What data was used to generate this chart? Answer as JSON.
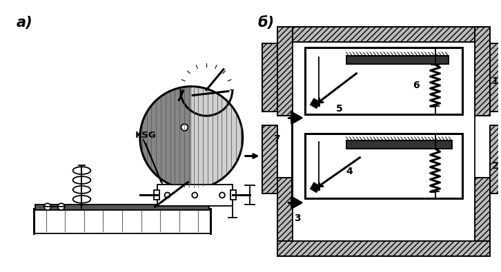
{
  "label_a": "a)",
  "label_b": "б)",
  "label_ksg": "KSG",
  "numbers": [
    "1",
    "2",
    "3",
    "4",
    "5",
    "6",
    "7"
  ],
  "bg_color": "#ffffff",
  "line_color": "#000000",
  "fig_width": 7.26,
  "fig_height": 3.95,
  "dpi": 100
}
